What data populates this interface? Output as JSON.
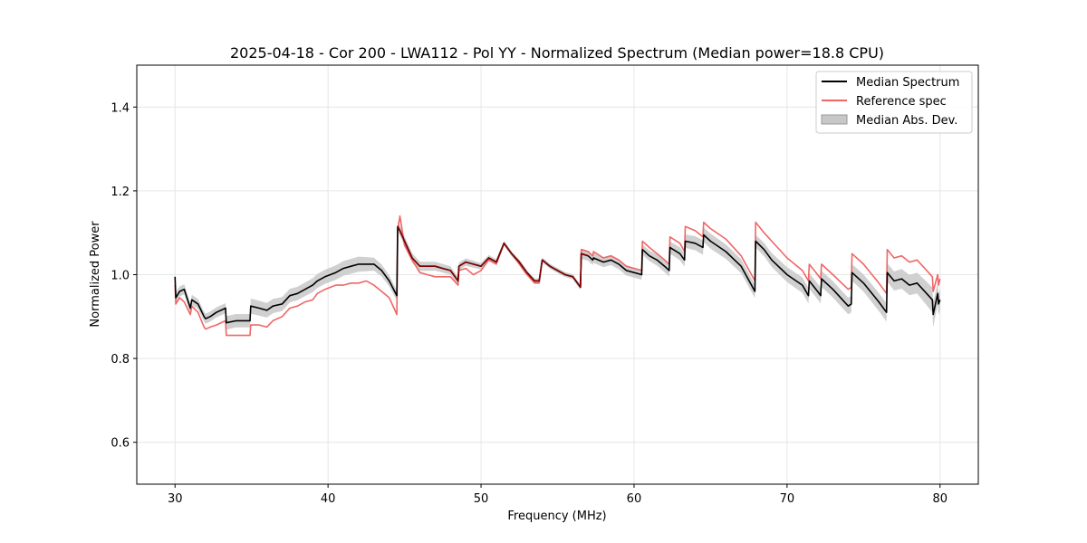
{
  "chart_data": {
    "type": "line",
    "title": "2025-04-18 - Cor 200 - LWA112 - Pol YY - Normalized Spectrum (Median power=18.8 CPU)",
    "xlabel": "Frequency (MHz)",
    "ylabel": "Normalized Power",
    "xlim": [
      27.5,
      82.5
    ],
    "ylim": [
      0.5,
      1.5
    ],
    "xticks": [
      30,
      40,
      50,
      60,
      70,
      80
    ],
    "yticks": [
      0.6,
      0.8,
      1.0,
      1.2,
      1.4
    ],
    "xtick_labels": [
      "30",
      "40",
      "50",
      "60",
      "70",
      "80"
    ],
    "ytick_labels": [
      "0.6",
      "0.8",
      "1.0",
      "1.2",
      "1.4"
    ],
    "grid": true,
    "legend_position": "top-right",
    "legend": [
      "Median Spectrum",
      "Reference spec",
      "Median Abs. Dev."
    ],
    "colors": {
      "median": "#000000",
      "reference": "#f06666",
      "mad": "#c8c8c8",
      "overlap": "#800000"
    },
    "series": [
      {
        "name": "Median Spectrum",
        "x": [
          30.0,
          30.05,
          30.3,
          30.6,
          31.0,
          31.1,
          31.5,
          31.9,
          32.0,
          32.3,
          32.7,
          33.3,
          33.35,
          34.0,
          34.9,
          34.95,
          35.5,
          36.0,
          36.4,
          37.0,
          37.5,
          38.0,
          38.5,
          39.0,
          39.3,
          39.8,
          40.5,
          41.0,
          41.5,
          42.0,
          42.5,
          43.0,
          43.5,
          44.0,
          44.5,
          44.55,
          44.7,
          45.0,
          45.5,
          46.0,
          46.5,
          47.0,
          47.5,
          48.0,
          48.5,
          48.55,
          49.0,
          49.5,
          50.0,
          50.5,
          51.0,
          51.5,
          52.0,
          52.5,
          53.0,
          53.5,
          53.8,
          54.0,
          54.5,
          55.0,
          55.5,
          56.0,
          56.5,
          56.55,
          57.0,
          57.3,
          57.35,
          58.0,
          58.5,
          59.0,
          59.5,
          60.0,
          60.5,
          60.55,
          61.0,
          61.5,
          62.0,
          62.3,
          62.35,
          63.0,
          63.3,
          63.35,
          64.0,
          64.5,
          64.55,
          65.0,
          66.0,
          67.0,
          67.9,
          67.95,
          68.5,
          69.0,
          70.0,
          71.0,
          71.4,
          71.45,
          72.0,
          72.2,
          72.25,
          73.0,
          74.0,
          74.2,
          74.25,
          75.0,
          76.0,
          76.5,
          76.55,
          77.0,
          77.5,
          78.0,
          78.5,
          79.5,
          79.55,
          79.85,
          79.9,
          80.0
        ],
        "values": [
          0.995,
          0.945,
          0.96,
          0.965,
          0.92,
          0.94,
          0.93,
          0.9,
          0.895,
          0.9,
          0.91,
          0.92,
          0.885,
          0.89,
          0.89,
          0.925,
          0.92,
          0.915,
          0.925,
          0.93,
          0.95,
          0.955,
          0.965,
          0.975,
          0.985,
          0.995,
          1.005,
          1.015,
          1.02,
          1.025,
          1.025,
          1.025,
          1.01,
          0.985,
          0.95,
          1.115,
          1.105,
          1.08,
          1.04,
          1.02,
          1.02,
          1.02,
          1.015,
          1.01,
          0.985,
          1.02,
          1.03,
          1.025,
          1.02,
          1.04,
          1.03,
          1.075,
          1.05,
          1.03,
          1.005,
          0.985,
          0.985,
          1.035,
          1.02,
          1.01,
          1.0,
          0.995,
          0.97,
          1.05,
          1.045,
          1.035,
          1.04,
          1.03,
          1.035,
          1.025,
          1.01,
          1.005,
          1.0,
          1.06,
          1.045,
          1.035,
          1.02,
          1.01,
          1.065,
          1.05,
          1.035,
          1.08,
          1.075,
          1.065,
          1.095,
          1.08,
          1.055,
          1.02,
          0.96,
          1.08,
          1.06,
          1.035,
          1.0,
          0.975,
          0.95,
          0.985,
          0.96,
          0.95,
          0.99,
          0.965,
          0.925,
          0.93,
          1.005,
          0.98,
          0.935,
          0.91,
          1.005,
          0.985,
          0.99,
          0.975,
          0.98,
          0.94,
          0.905,
          0.955,
          0.93,
          0.94
        ]
      },
      {
        "name": "Reference spec",
        "x": [
          30.0,
          30.05,
          30.3,
          30.6,
          31.0,
          31.1,
          31.5,
          31.9,
          32.0,
          32.3,
          32.7,
          33.3,
          33.35,
          34.0,
          34.9,
          34.95,
          35.5,
          36.0,
          36.4,
          37.0,
          37.5,
          38.0,
          38.5,
          39.0,
          39.3,
          39.8,
          40.5,
          41.0,
          41.5,
          42.0,
          42.5,
          43.0,
          43.5,
          44.0,
          44.5,
          44.55,
          44.7,
          45.0,
          45.5,
          46.0,
          46.5,
          47.0,
          47.5,
          48.0,
          48.5,
          48.55,
          49.0,
          49.5,
          50.0,
          50.5,
          51.0,
          51.5,
          52.0,
          52.5,
          53.0,
          53.5,
          53.8,
          54.0,
          54.5,
          55.0,
          55.5,
          56.0,
          56.5,
          56.55,
          57.0,
          57.3,
          57.35,
          58.0,
          58.5,
          59.0,
          59.5,
          60.0,
          60.5,
          60.55,
          61.0,
          61.5,
          62.0,
          62.3,
          62.35,
          63.0,
          63.3,
          63.35,
          64.0,
          64.5,
          64.55,
          65.0,
          66.0,
          67.0,
          67.9,
          67.95,
          68.5,
          69.0,
          70.0,
          71.0,
          71.4,
          71.45,
          72.0,
          72.2,
          72.25,
          73.0,
          74.0,
          74.2,
          74.25,
          75.0,
          76.0,
          76.5,
          76.55,
          77.0,
          77.5,
          78.0,
          78.5,
          79.5,
          79.55,
          79.85,
          79.9,
          80.0
        ],
        "values": [
          0.975,
          0.93,
          0.945,
          0.935,
          0.905,
          0.925,
          0.91,
          0.875,
          0.87,
          0.875,
          0.88,
          0.89,
          0.855,
          0.855,
          0.855,
          0.88,
          0.88,
          0.875,
          0.89,
          0.9,
          0.92,
          0.925,
          0.935,
          0.94,
          0.955,
          0.965,
          0.975,
          0.975,
          0.98,
          0.98,
          0.985,
          0.975,
          0.96,
          0.945,
          0.905,
          1.105,
          1.14,
          1.07,
          1.035,
          1.005,
          1.0,
          0.995,
          0.995,
          0.995,
          0.975,
          1.01,
          1.015,
          1.0,
          1.01,
          1.035,
          1.025,
          1.075,
          1.05,
          1.025,
          1.0,
          0.98,
          0.98,
          1.035,
          1.02,
          1.01,
          1.0,
          0.995,
          0.97,
          1.06,
          1.055,
          1.045,
          1.055,
          1.04,
          1.045,
          1.035,
          1.02,
          1.015,
          1.01,
          1.08,
          1.065,
          1.05,
          1.035,
          1.025,
          1.09,
          1.075,
          1.055,
          1.115,
          1.105,
          1.09,
          1.125,
          1.11,
          1.085,
          1.045,
          0.985,
          1.125,
          1.1,
          1.08,
          1.04,
          1.01,
          0.985,
          1.025,
          1.0,
          0.99,
          1.025,
          1.0,
          0.965,
          0.97,
          1.05,
          1.025,
          0.98,
          0.955,
          1.06,
          1.04,
          1.045,
          1.03,
          1.035,
          0.995,
          0.96,
          1.0,
          0.975,
          0.99
        ]
      },
      {
        "name": "Median Abs. Dev.",
        "x": [
          30.0,
          33.3,
          33.35,
          34.9,
          34.95,
          38.0,
          42.0,
          44.5,
          44.55,
          48.0,
          51.5,
          56.5,
          56.55,
          60.0,
          60.55,
          63.35,
          65.0,
          67.9,
          67.95,
          70.0,
          74.25,
          76.5,
          76.55,
          78.5,
          79.55,
          80.0
        ],
        "half_width": [
          0.012,
          0.012,
          0.016,
          0.016,
          0.018,
          0.016,
          0.018,
          0.012,
          0.012,
          0.01,
          0.006,
          0.006,
          0.012,
          0.012,
          0.012,
          0.016,
          0.018,
          0.016,
          0.015,
          0.018,
          0.02,
          0.022,
          0.022,
          0.025,
          0.03,
          0.025
        ]
      }
    ]
  }
}
